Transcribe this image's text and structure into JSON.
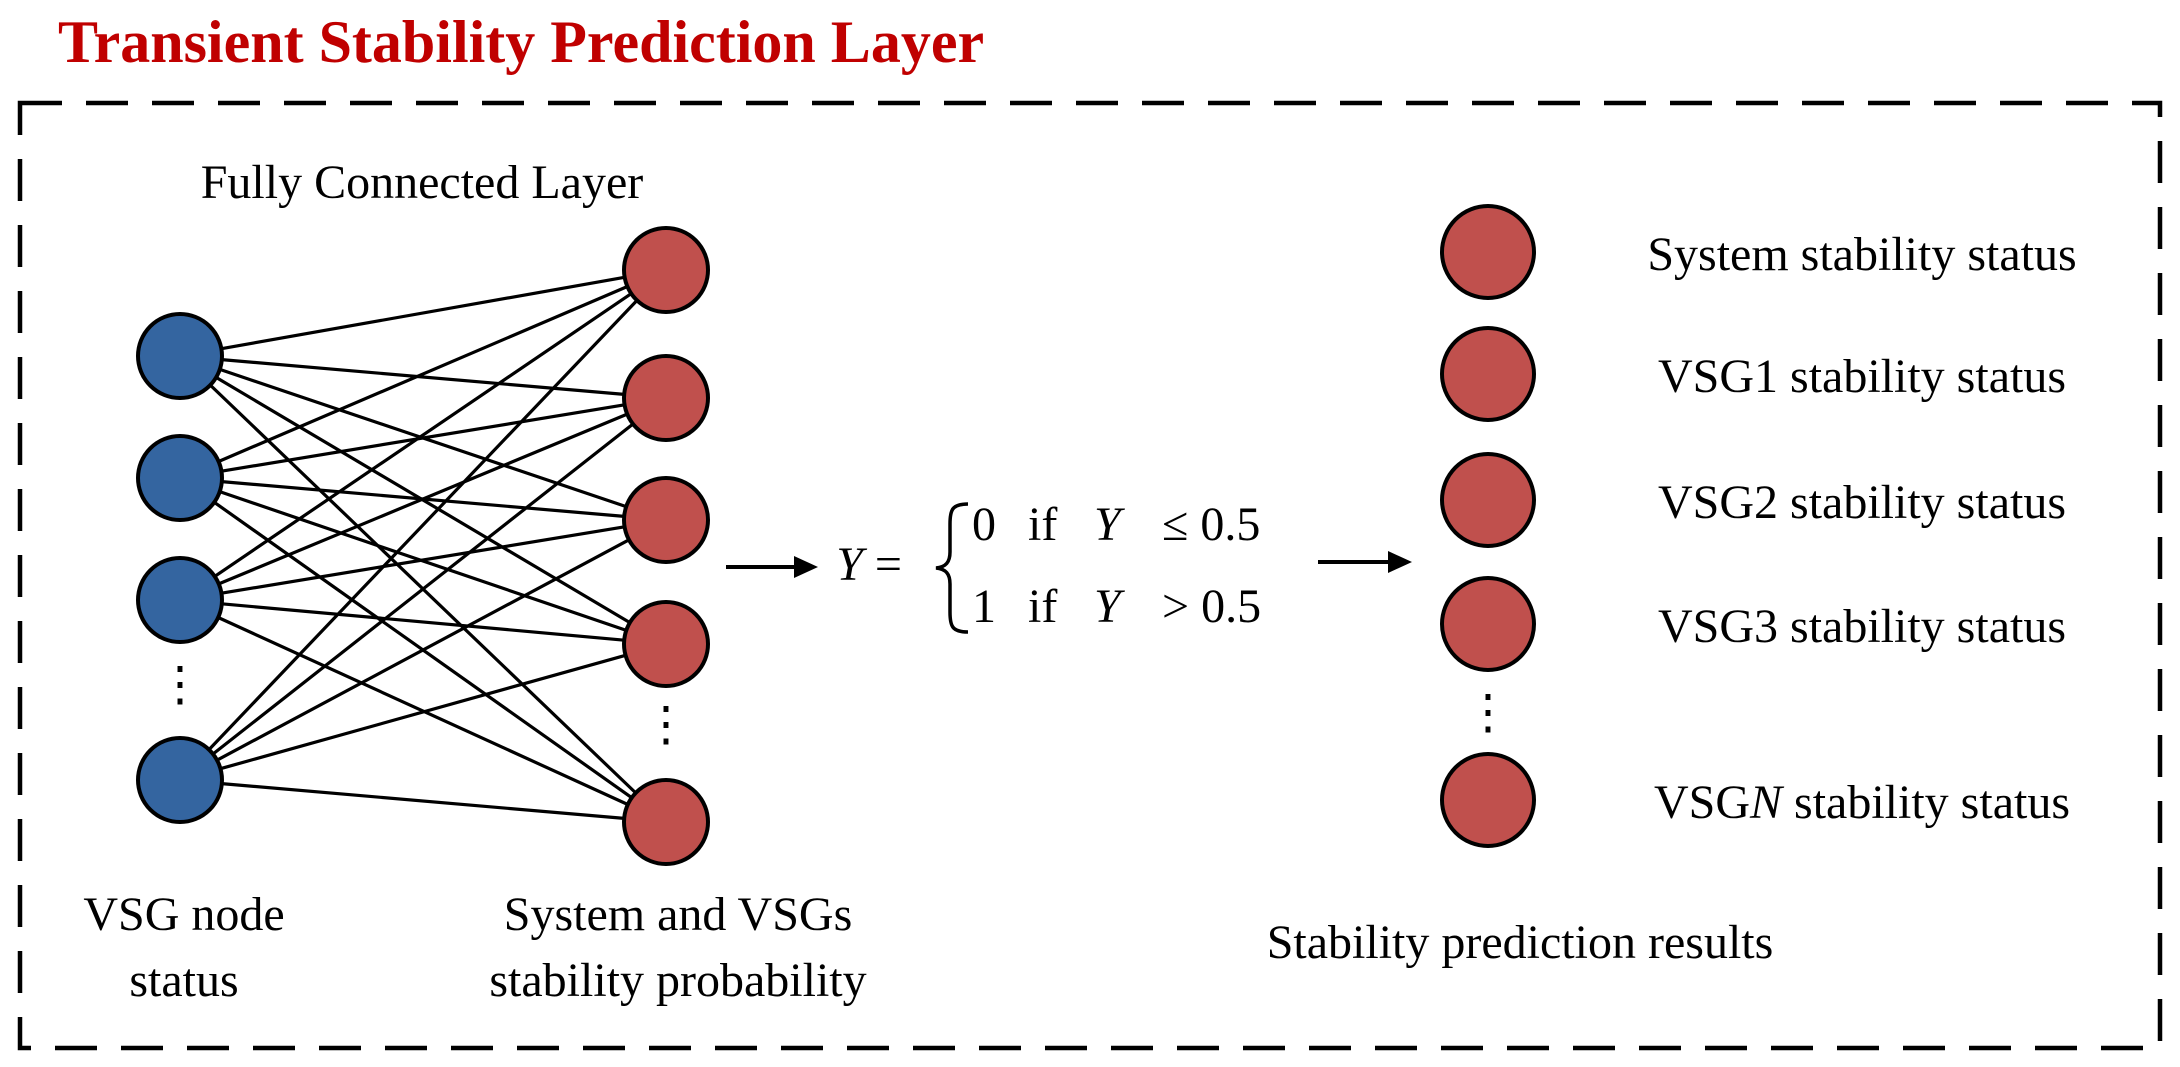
{
  "title": "Transient Stability Prediction Layer",
  "colors": {
    "title": "#C00000",
    "input_node": "#3465A0",
    "output_node": "#C0504D",
    "stroke": "#000000",
    "background": "#FFFFFF"
  },
  "network": {
    "layer_label": "Fully Connected Layer",
    "input_label_line1": "VSG node",
    "input_label_line2": "status",
    "output_label_line1": "System and VSGs",
    "output_label_line2": "stability probability",
    "input_ellipsis": "⋮",
    "output_ellipsis": "⋮"
  },
  "equation": {
    "lhs": "Y =",
    "case1_value": "0",
    "case1_if": "if",
    "case1_var": "Y",
    "case1_cond": "≤ 0.5",
    "case2_value": "1",
    "case2_if": "if",
    "case2_var": "Y",
    "case2_cond": "> 0.5"
  },
  "results": {
    "items": [
      {
        "label_pre": "System stability status",
        "label_italic": "",
        "label_post": ""
      },
      {
        "label_pre": "VSG1 stability status",
        "label_italic": "",
        "label_post": ""
      },
      {
        "label_pre": "VSG2 stability status",
        "label_italic": "",
        "label_post": ""
      },
      {
        "label_pre": "VSG3 stability status",
        "label_italic": "",
        "label_post": ""
      },
      {
        "label_pre": "VSG",
        "label_italic": "N",
        "label_post": " stability status"
      }
    ],
    "ellipsis": "⋮",
    "caption": "Stability prediction results"
  }
}
